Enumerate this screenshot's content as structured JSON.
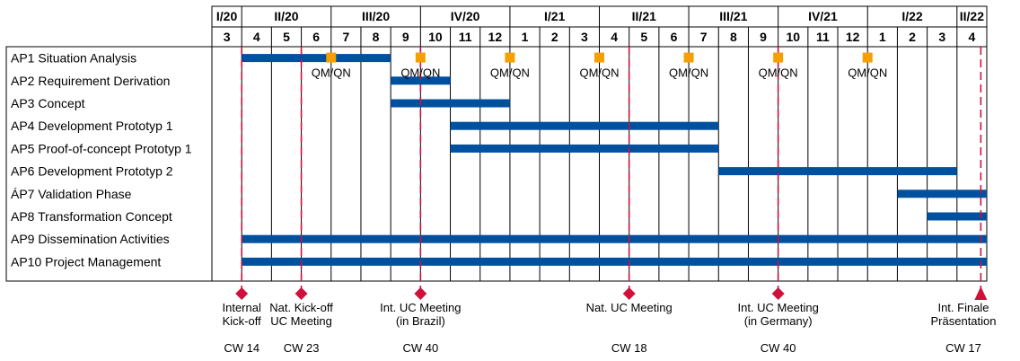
{
  "quarters": [
    {
      "label": "I/20",
      "start": 0,
      "span": 1
    },
    {
      "label": "II/20",
      "start": 1,
      "span": 3
    },
    {
      "label": "III/20",
      "start": 4,
      "span": 3
    },
    {
      "label": "IV/20",
      "start": 7,
      "span": 3
    },
    {
      "label": "I/21",
      "start": 10,
      "span": 3
    },
    {
      "label": "II/21",
      "start": 13,
      "span": 3
    },
    {
      "label": "III/21",
      "start": 16,
      "span": 3
    },
    {
      "label": "IV/21",
      "start": 19,
      "span": 3
    },
    {
      "label": "I/22",
      "start": 22,
      "span": 3
    },
    {
      "label": "II/22",
      "start": 25,
      "span": 1
    }
  ],
  "months": [
    "3",
    "4",
    "5",
    "6",
    "7",
    "8",
    "9",
    "10",
    "11",
    "12",
    "1",
    "2",
    "3",
    "4",
    "5",
    "6",
    "7",
    "8",
    "9",
    "10",
    "11",
    "12",
    "1",
    "2",
    "3",
    "4"
  ],
  "rows": [
    {
      "label": "AP1 Situation Analysis",
      "start": 1,
      "end": 6
    },
    {
      "label": "AP2 Requirement Derivation",
      "start": 6,
      "end": 8
    },
    {
      "label": "AP3 Concept",
      "start": 6,
      "end": 10
    },
    {
      "label": "AP4 Development Prototyp 1",
      "start": 8,
      "end": 17
    },
    {
      "label": "AP5 Proof-of-concept Prototyp 1",
      "start": 8,
      "end": 17
    },
    {
      "label": "AP6 Development Prototyp 2",
      "start": 17,
      "end": 25
    },
    {
      "label": "ÁP7 Validation Phase",
      "start": 23,
      "end": 26
    },
    {
      "label": "AP8 Transformation Concept",
      "start": 24,
      "end": 26
    },
    {
      "label": "AP9 Dissemination Activities",
      "start": 1,
      "end": 26
    },
    {
      "label": "AP10 Project Management",
      "start": 1,
      "end": 26
    }
  ],
  "qm_markers": [
    {
      "label": "QM/QN",
      "at": 4
    },
    {
      "label": "QM/QN",
      "at": 7
    },
    {
      "label": "QM/QN",
      "at": 10
    },
    {
      "label": "QM/QN",
      "at": 13
    },
    {
      "label": "QM/QN",
      "at": 16
    },
    {
      "label": "QM/QN",
      "at": 19
    },
    {
      "label": "QM/QN",
      "at": 22
    }
  ],
  "milestones": [
    {
      "at": 1,
      "lines": [
        "Internal",
        "Kick-off"
      ],
      "cw": "CW 14",
      "shape": "diamond"
    },
    {
      "at": 3,
      "lines": [
        "Nat. Kick-off",
        "UC Meeting"
      ],
      "cw": "CW 23",
      "shape": "diamond"
    },
    {
      "at": 7,
      "lines": [
        "Int. UC Meeting",
        "(in Brazil)"
      ],
      "cw": "CW 40",
      "shape": "diamond"
    },
    {
      "at": 14,
      "lines": [
        "Nat. UC Meeting"
      ],
      "cw": "CW 18",
      "shape": "diamond"
    },
    {
      "at": 19,
      "lines": [
        "Int. UC Meeting",
        "(in Germany)"
      ],
      "cw": "CW 40",
      "shape": "diamond"
    },
    {
      "at": 25.8,
      "lines": [
        "Int. Finale",
        "Präsentation"
      ],
      "cw": "CW 17",
      "shape": "triangle"
    }
  ],
  "colors": {
    "bar": "#0050a0",
    "qm": "#f5a000",
    "milestone": "#d0103a",
    "grid": "#000000"
  }
}
